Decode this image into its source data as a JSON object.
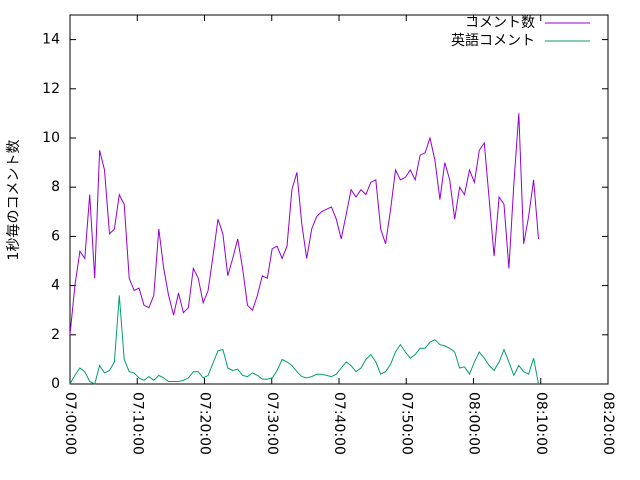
{
  "chart_data": {
    "type": "line",
    "y_label": "1秒毎のコメント数",
    "x": [
      "07:00:00",
      "07:00:44",
      "07:01:28",
      "07:02:12",
      "07:02:56",
      "07:03:40",
      "07:04:24",
      "07:05:08",
      "07:05:52",
      "07:06:36",
      "07:07:20",
      "07:08:04",
      "07:08:48",
      "07:09:32",
      "07:10:16",
      "07:11:00",
      "07:11:44",
      "07:12:28",
      "07:13:12",
      "07:13:56",
      "07:14:40",
      "07:15:24",
      "07:16:08",
      "07:16:52",
      "07:17:36",
      "07:18:20",
      "07:19:04",
      "07:19:48",
      "07:20:32",
      "07:21:16",
      "07:22:00",
      "07:22:44",
      "07:23:28",
      "07:24:12",
      "07:24:56",
      "07:25:40",
      "07:26:24",
      "07:27:08",
      "07:27:52",
      "07:28:36",
      "07:29:20",
      "07:30:04",
      "07:30:48",
      "07:31:32",
      "07:32:16",
      "07:33:00",
      "07:33:44",
      "07:34:28",
      "07:35:12",
      "07:35:56",
      "07:36:40",
      "07:37:24",
      "07:38:08",
      "07:38:52",
      "07:39:36",
      "07:40:20",
      "07:41:04",
      "07:41:48",
      "07:42:32",
      "07:43:16",
      "07:44:00",
      "07:44:44",
      "07:45:28",
      "07:46:12",
      "07:46:56",
      "07:47:40",
      "07:48:24",
      "07:49:08",
      "07:49:52",
      "07:50:36",
      "07:51:20",
      "07:52:04",
      "07:52:48",
      "07:53:32",
      "07:54:16",
      "07:55:00",
      "07:55:44",
      "07:56:28",
      "07:57:12",
      "07:57:56",
      "07:58:40",
      "07:59:24",
      "08:00:08",
      "08:00:52",
      "08:01:36",
      "08:02:20",
      "08:03:04",
      "08:03:48",
      "08:04:32",
      "08:05:16",
      "08:06:00",
      "08:06:44",
      "08:07:28",
      "08:08:12",
      "08:08:56",
      "08:09:40"
    ],
    "series": [
      {
        "name": "コメント数",
        "color": "#9400d3",
        "values": [
          2.0,
          4.0,
          5.4,
          5.1,
          7.7,
          4.3,
          9.5,
          8.7,
          6.1,
          6.3,
          7.7,
          7.3,
          4.3,
          3.8,
          3.9,
          3.2,
          3.1,
          3.6,
          6.3,
          4.7,
          3.6,
          2.8,
          3.7,
          2.9,
          3.1,
          4.7,
          4.3,
          3.3,
          3.8,
          5.2,
          6.7,
          6.1,
          4.4,
          5.1,
          5.9,
          4.7,
          3.2,
          3.0,
          3.6,
          4.4,
          4.3,
          5.5,
          5.6,
          5.1,
          5.6,
          7.9,
          8.6,
          6.5,
          5.1,
          6.3,
          6.8,
          7.0,
          7.1,
          7.2,
          6.7,
          5.9,
          6.9,
          7.9,
          7.6,
          7.9,
          7.7,
          8.2,
          8.3,
          6.3,
          5.7,
          7.1,
          8.7,
          8.3,
          8.4,
          8.7,
          8.3,
          9.3,
          9.4,
          10.0,
          9.1,
          7.5,
          9.0,
          8.3,
          6.7,
          8.0,
          7.7,
          8.7,
          8.2,
          9.5,
          9.8,
          7.5,
          5.2,
          7.6,
          7.3,
          4.7,
          8.1,
          11.0,
          5.7,
          6.8,
          8.3,
          5.9
        ]
      },
      {
        "name": "英語コメント",
        "color": "#009e73",
        "values": [
          0,
          0.35,
          0.65,
          0.5,
          0.1,
          0,
          0.75,
          0.45,
          0.55,
          0.9,
          3.6,
          1.0,
          0.5,
          0.45,
          0.25,
          0.15,
          0.3,
          0.15,
          0.35,
          0.25,
          0.1,
          0.1,
          0.1,
          0.15,
          0.25,
          0.5,
          0.5,
          0.25,
          0.35,
          0.85,
          1.35,
          1.4,
          0.65,
          0.55,
          0.6,
          0.35,
          0.3,
          0.45,
          0.35,
          0.2,
          0.2,
          0.25,
          0.55,
          1.0,
          0.9,
          0.75,
          0.5,
          0.3,
          0.25,
          0.3,
          0.4,
          0.4,
          0.35,
          0.3,
          0.4,
          0.65,
          0.9,
          0.75,
          0.5,
          0.65,
          1.0,
          1.2,
          0.9,
          0.4,
          0.5,
          0.8,
          1.3,
          1.6,
          1.3,
          1.05,
          1.2,
          1.45,
          1.45,
          1.7,
          1.8,
          1.6,
          1.55,
          1.45,
          1.3,
          0.65,
          0.7,
          0.4,
          0.9,
          1.3,
          1.05,
          0.75,
          0.55,
          0.9,
          1.4,
          0.9,
          0.35,
          0.75,
          0.5,
          0.4,
          1.05,
          0
        ]
      }
    ],
    "xlim": [
      "07:00:00",
      "08:20:00"
    ],
    "xticks": [
      "07:00:00",
      "07:10:00",
      "07:20:00",
      "07:30:00",
      "07:40:00",
      "07:50:00",
      "08:00:00",
      "08:10:00",
      "08:20:00"
    ],
    "ylim": [
      0,
      15
    ],
    "yticks": [
      0,
      2,
      4,
      6,
      8,
      10,
      12,
      14
    ],
    "legend": "top-right"
  }
}
